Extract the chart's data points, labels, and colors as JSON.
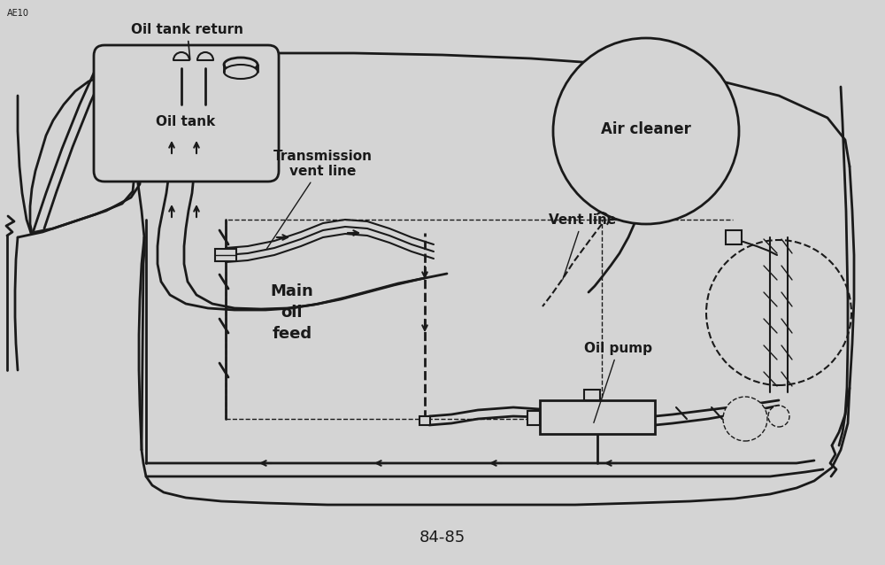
{
  "title": "84-85",
  "bg_color": "#d4d4d4",
  "line_color": "#1a1a1a",
  "labels": {
    "oil_tank_return": "Oil tank return",
    "oil_tank": "Oil tank",
    "transmission_vent": "Transmission\nvent line",
    "air_cleaner": "Air cleaner",
    "vent_line": "Vent line",
    "oil_pump": "Oil pump",
    "main_oil_feed": "Main\noil\nfeed",
    "ae10": "AE10"
  }
}
